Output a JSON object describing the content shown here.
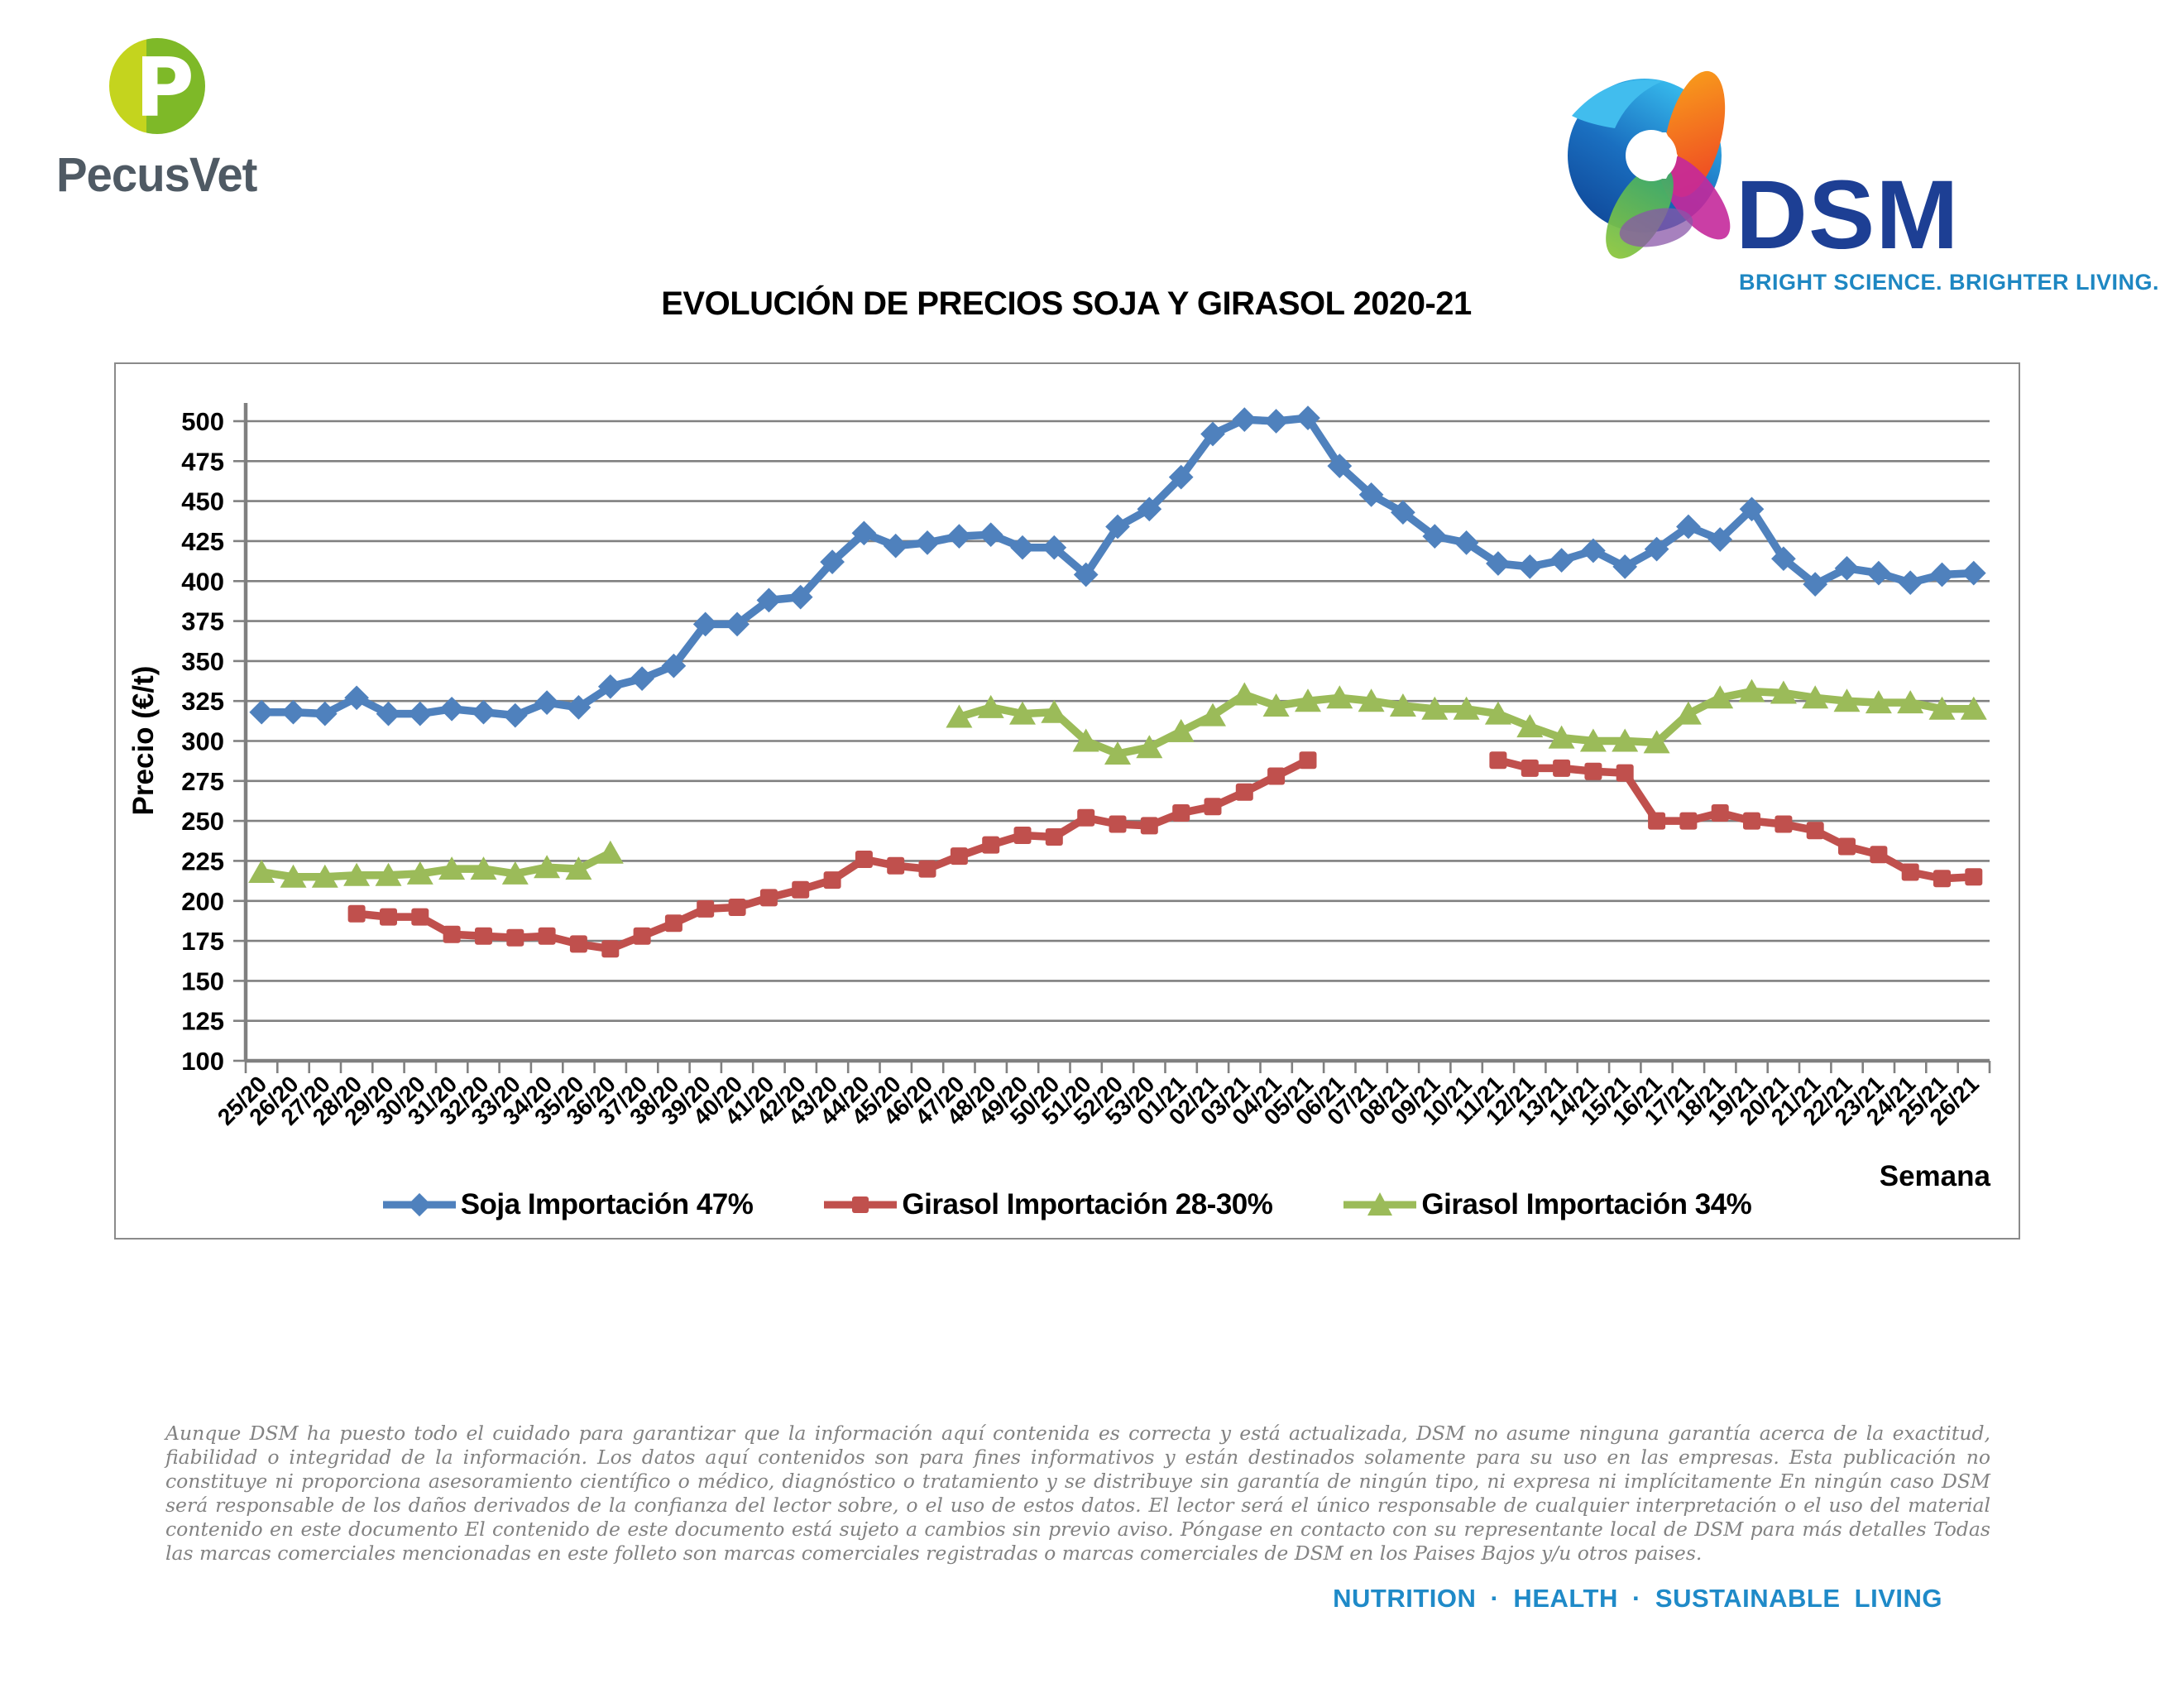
{
  "header": {
    "pecusvet_name": "PecusVet",
    "dsm_name": "DSM",
    "dsm_tagline": "BRIGHT SCIENCE. BRIGHTER LIVING."
  },
  "title": "EVOLUCIÓN DE PRECIOS SOJA Y GIRASOL 2020-21",
  "chart_data": {
    "type": "line",
    "title": "EVOLUCIÓN DE PRECIOS SOJA Y GIRASOL 2020-21",
    "xlabel": "Semana",
    "ylabel": "Precio (€/t)",
    "ylim": [
      100,
      500
    ],
    "ytick_step": 25,
    "grid": true,
    "legend_position": "bottom",
    "axis_color": "#808080",
    "categories": [
      "25/20",
      "26/20",
      "27/20",
      "28/20",
      "29/20",
      "30/20",
      "31/20",
      "32/20",
      "33/20",
      "34/20",
      "35/20",
      "36/20",
      "37/20",
      "38/20",
      "39/20",
      "40/20",
      "41/20",
      "42/20",
      "43/20",
      "44/20",
      "45/20",
      "46/20",
      "47/20",
      "48/20",
      "49/20",
      "50/20",
      "51/20",
      "52/20",
      "53/20",
      "01/21",
      "02/21",
      "03/21",
      "04/21",
      "05/21",
      "06/21",
      "07/21",
      "08/21",
      "09/21",
      "10/21",
      "11/21",
      "12/21",
      "13/21",
      "14/21",
      "15/21",
      "16/21",
      "17/21",
      "18/21",
      "19/21",
      "20/21",
      "21/21",
      "22/21",
      "23/21",
      "24/21",
      "25/21",
      "26/21"
    ],
    "series": [
      {
        "name": "Soja Importación 47%",
        "color": "#4F81BD",
        "marker": "diamond",
        "values": [
          318,
          318,
          317,
          327,
          317,
          317,
          320,
          318,
          316,
          324,
          321,
          334,
          339,
          347,
          373,
          373,
          388,
          390,
          412,
          430,
          422,
          424,
          428,
          429,
          421,
          421,
          404,
          434,
          445,
          465,
          492,
          501,
          500,
          502,
          472,
          454,
          443,
          428,
          424,
          411,
          409,
          413,
          419,
          409,
          420,
          434,
          426,
          445,
          414,
          398,
          408,
          405,
          399,
          404,
          405
        ]
      },
      {
        "name": "Girasol Importación 28-30%",
        "color": "#C0504D",
        "marker": "square",
        "values": [
          null,
          null,
          null,
          192,
          190,
          190,
          179,
          178,
          177,
          178,
          173,
          170,
          178,
          186,
          195,
          196,
          202,
          207,
          213,
          226,
          222,
          220,
          228,
          235,
          241,
          240,
          252,
          248,
          247,
          255,
          259,
          268,
          278,
          288,
          null,
          null,
          null,
          null,
          null,
          288,
          283,
          283,
          281,
          280,
          250,
          250,
          255,
          250,
          248,
          244,
          234,
          229,
          218,
          214,
          215
        ]
      },
      {
        "name": "Girasol Importación 34%",
        "color": "#9BBB59",
        "marker": "triangle",
        "values": [
          218,
          215,
          215,
          216,
          216,
          217,
          220,
          220,
          217,
          221,
          220,
          230,
          null,
          null,
          null,
          null,
          null,
          null,
          null,
          null,
          null,
          null,
          315,
          321,
          317,
          318,
          300,
          292,
          296,
          306,
          316,
          329,
          322,
          325,
          327,
          325,
          322,
          320,
          320,
          317,
          309,
          302,
          300,
          300,
          299,
          317,
          327,
          331,
          330,
          327,
          325,
          324,
          324,
          320,
          320
        ]
      }
    ]
  },
  "footer": {
    "disclaimer": "Aunque DSM ha puesto todo el cuidado para garantizar que la información aquí contenida es correcta y está actualizada, DSM no asume ninguna garantía acerca de la exactitud, fiabilidad o integridad de la información. Los datos aquí contenidos son para fines informativos y están destinados solamente para su uso en las empresas. Esta publicación no constituye ni proporciona asesoramiento científico o médico, diagnóstico o tratamiento y se distribuye sin garantía de ningún tipo, ni expresa ni implícitamente En ningún caso DSM será responsable de los daños derivados de la confianza del lector sobre, o el uso de estos datos. El lector será el único responsable de cualquier interpretación o el uso del material contenido en este documento El contenido de este documento está sujeto a cambios sin previo aviso. Póngase en contacto con su representante local de DSM para más detalles Todas las marcas comerciales mencionadas en este folleto son marcas comerciales registradas o marcas comerciales de DSM en los Paises Bajos y/u otros paises.",
    "motto": "NUTRITION · HEALTH · SUSTAINABLE LIVING"
  }
}
